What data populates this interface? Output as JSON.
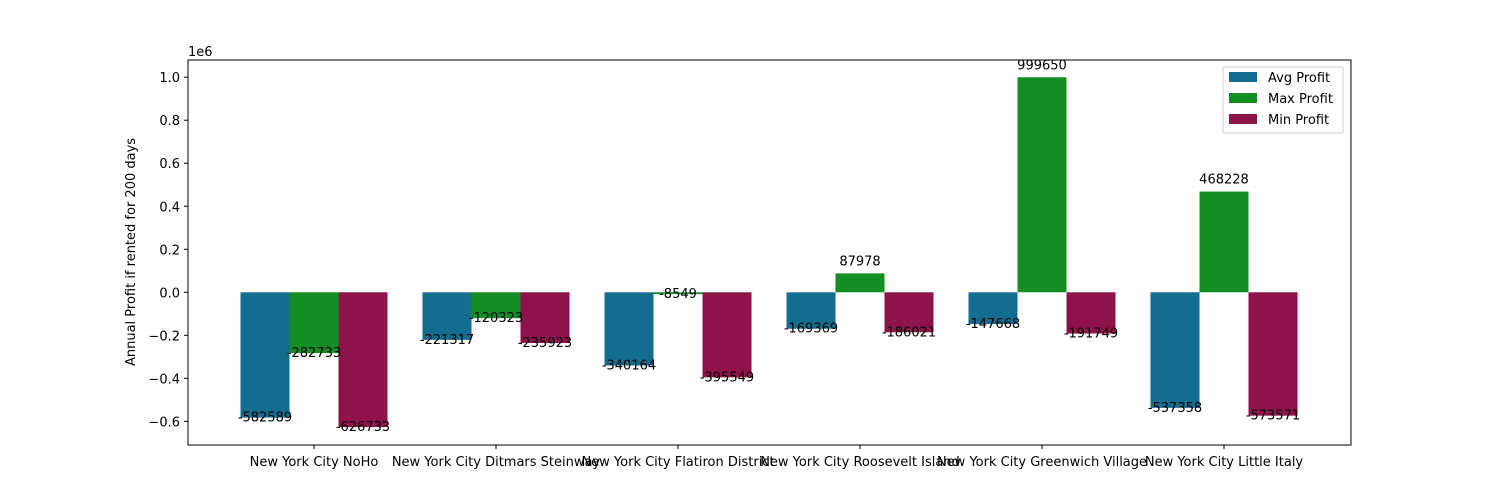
{
  "chart_data": {
    "type": "bar",
    "title": "",
    "xlabel": "",
    "ylabel": "Annual Profit if rented for 200 days",
    "y_scale_label": "1e6",
    "ylim": [
      -710000,
      1080000
    ],
    "y_ticks": [
      -0.6,
      -0.4,
      -0.2,
      0.0,
      0.2,
      0.4,
      0.6,
      0.8,
      1.0
    ],
    "y_tick_labels": [
      "−0.6",
      "−0.4",
      "−0.2",
      "0.0",
      "0.2",
      "0.4",
      "0.6",
      "0.8",
      "1.0"
    ],
    "grid": false,
    "legend_position": "top-right",
    "categories": [
      "New York City NoHo",
      "New York City Ditmars Steinway",
      "New York City Flatiron District",
      "New York City Roosevelt Island",
      "New York City Greenwich Village",
      "New York City Little Italy"
    ],
    "series": [
      {
        "name": "Avg Profit",
        "color": "#136d8e",
        "values": [
          -582589,
          -221317,
          -340164,
          -169369,
          -147668,
          -537358
        ]
      },
      {
        "name": "Max Profit",
        "color": "#138e22",
        "values": [
          -282733,
          -120323,
          -8549,
          87978,
          999650,
          468228
        ]
      },
      {
        "name": "Min Profit",
        "color": "#8e134a",
        "values": [
          -626733,
          -235923,
          -395549,
          -186021,
          -191749,
          -573571
        ]
      }
    ]
  }
}
